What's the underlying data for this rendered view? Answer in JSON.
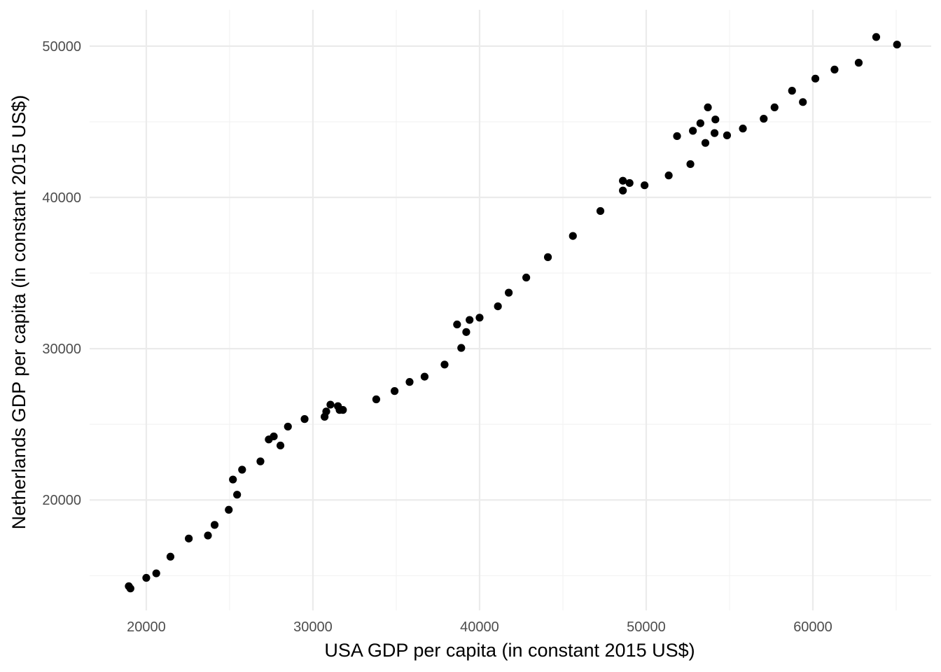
{
  "chart_data": {
    "type": "scatter",
    "title": "",
    "xlabel": "USA GDP per capita (in constant 2015 US$)",
    "ylabel": "Netherlands GDP per capita (in constant 2015 US$)",
    "xlim": [
      16600,
      67100
    ],
    "ylim": [
      12700,
      52400
    ],
    "x_ticks": [
      20000,
      30000,
      40000,
      50000,
      60000
    ],
    "y_ticks": [
      20000,
      30000,
      40000,
      50000
    ],
    "x_tick_labels": [
      "20000",
      "30000",
      "40000",
      "50000",
      "60000"
    ],
    "y_tick_labels": [
      "20000",
      "30000",
      "40000",
      "50000"
    ],
    "grid": true,
    "legend": "none",
    "point_color": "#000000",
    "points": [
      [
        18950,
        14300
      ],
      [
        19050,
        14150
      ],
      [
        20000,
        14850
      ],
      [
        20600,
        15150
      ],
      [
        21450,
        16250
      ],
      [
        22550,
        17450
      ],
      [
        23700,
        17650
      ],
      [
        24100,
        18350
      ],
      [
        24950,
        19350
      ],
      [
        25200,
        21350
      ],
      [
        25450,
        20350
      ],
      [
        25750,
        22000
      ],
      [
        26850,
        22550
      ],
      [
        27350,
        24000
      ],
      [
        27650,
        24200
      ],
      [
        28050,
        23600
      ],
      [
        28500,
        24850
      ],
      [
        29500,
        25350
      ],
      [
        30700,
        25500
      ],
      [
        30800,
        25850
      ],
      [
        31050,
        26300
      ],
      [
        31500,
        26200
      ],
      [
        31600,
        25950
      ],
      [
        31800,
        25950
      ],
      [
        33800,
        26650
      ],
      [
        34900,
        27200
      ],
      [
        35800,
        27800
      ],
      [
        36700,
        28150
      ],
      [
        37900,
        28950
      ],
      [
        38650,
        31600
      ],
      [
        38900,
        30050
      ],
      [
        39200,
        31100
      ],
      [
        39400,
        31900
      ],
      [
        40000,
        32050
      ],
      [
        41100,
        32800
      ],
      [
        41750,
        33700
      ],
      [
        42800,
        34700
      ],
      [
        44100,
        36050
      ],
      [
        45600,
        37450
      ],
      [
        47250,
        39100
      ],
      [
        48600,
        41100
      ],
      [
        48600,
        40450
      ],
      [
        49000,
        40950
      ],
      [
        49900,
        40800
      ],
      [
        51350,
        41450
      ],
      [
        51850,
        44050
      ],
      [
        52650,
        42200
      ],
      [
        52800,
        44400
      ],
      [
        53250,
        44900
      ],
      [
        53550,
        43600
      ],
      [
        53700,
        45950
      ],
      [
        54100,
        44250
      ],
      [
        54150,
        45150
      ],
      [
        54850,
        44100
      ],
      [
        55800,
        44550
      ],
      [
        57050,
        45200
      ],
      [
        57700,
        45950
      ],
      [
        58750,
        47050
      ],
      [
        59400,
        46300
      ],
      [
        60150,
        47850
      ],
      [
        61300,
        48450
      ],
      [
        62750,
        48900
      ],
      [
        63800,
        50600
      ],
      [
        65050,
        50100
      ]
    ]
  }
}
